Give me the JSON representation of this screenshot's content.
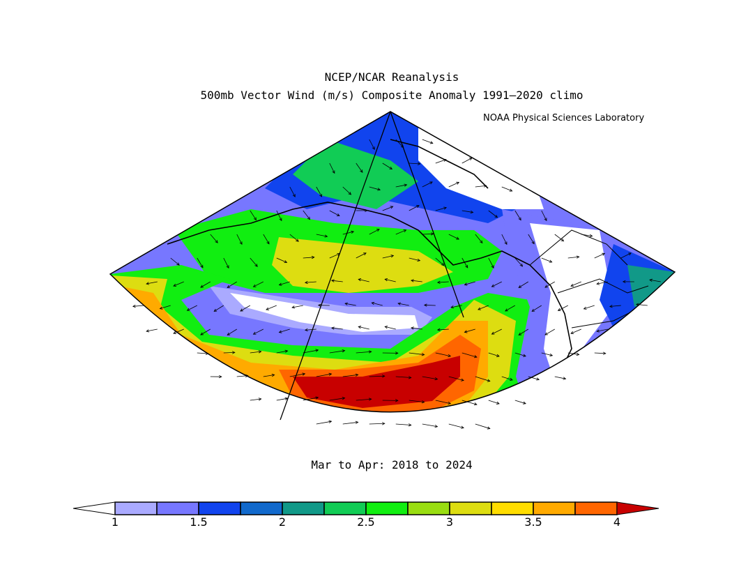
{
  "header": {
    "title_line1": "NCEP/NCAR Reanalysis",
    "title_line2": "500mb Vector Wind (m/s) Composite Anomaly 1991–2020 climo",
    "credit": "NOAA Physical Sciences Laboratory"
  },
  "footer": {
    "period": "Mar to Apr: 2018 to 2024"
  },
  "map": {
    "projection": "polar-sector",
    "region": "North Pacific / Alaska / western North America",
    "field": "500mb vector wind anomaly magnitude (m/s)",
    "features": [
      {
        "name": "jet-max-north-pacific",
        "value": ">4"
      },
      {
        "name": "minimum-band-central",
        "value": "<1"
      },
      {
        "name": "minimum-western-us",
        "value": "<1"
      }
    ]
  },
  "colorbar": {
    "min_arrow_color": "#ffffff",
    "max_arrow_color": "#c80000",
    "colors": [
      "#aaaaff",
      "#7777ff",
      "#1144ee",
      "#1169cc",
      "#119988",
      "#11cc55",
      "#11ee11",
      "#99dd11",
      "#dddd11",
      "#ffdd00",
      "#ffaa00",
      "#ff6600"
    ],
    "boundaries": [
      1,
      1.25,
      1.5,
      1.75,
      2,
      2.25,
      2.5,
      2.75,
      3,
      3.25,
      3.5,
      3.75,
      4
    ],
    "tick_labels": [
      "1",
      "1.5",
      "2",
      "2.5",
      "3",
      "3.5",
      "4"
    ],
    "tick_values": [
      1,
      1.5,
      2,
      2.5,
      3,
      3.5,
      4
    ]
  }
}
